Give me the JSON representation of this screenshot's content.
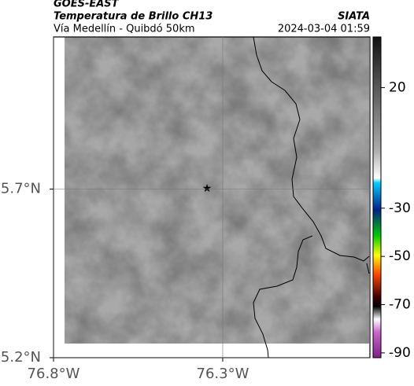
{
  "header": {
    "satellite": "GOES-EAST",
    "product": "Temperatura de Brillo CH13",
    "region": "Vía Medellín - Quibdó 50km",
    "source": "SIATA",
    "datetime": "2024-03-04 01:59"
  },
  "map": {
    "xlim": [
      -76.8,
      -75.865
    ],
    "ylim": [
      5.2,
      6.151
    ],
    "xticks": [
      {
        "value": -76.8,
        "label": "76.8°W"
      },
      {
        "value": -76.3,
        "label": "76.3°W"
      }
    ],
    "yticks": [
      {
        "value": 5.2,
        "label": "5.2°N"
      },
      {
        "value": 5.7,
        "label": "5.7°N"
      }
    ],
    "grid": true
  },
  "colorbar": {
    "ylim": [
      -92,
      41
    ],
    "yticks": [
      20,
      -30,
      -50,
      -70,
      -90
    ]
  }
}
